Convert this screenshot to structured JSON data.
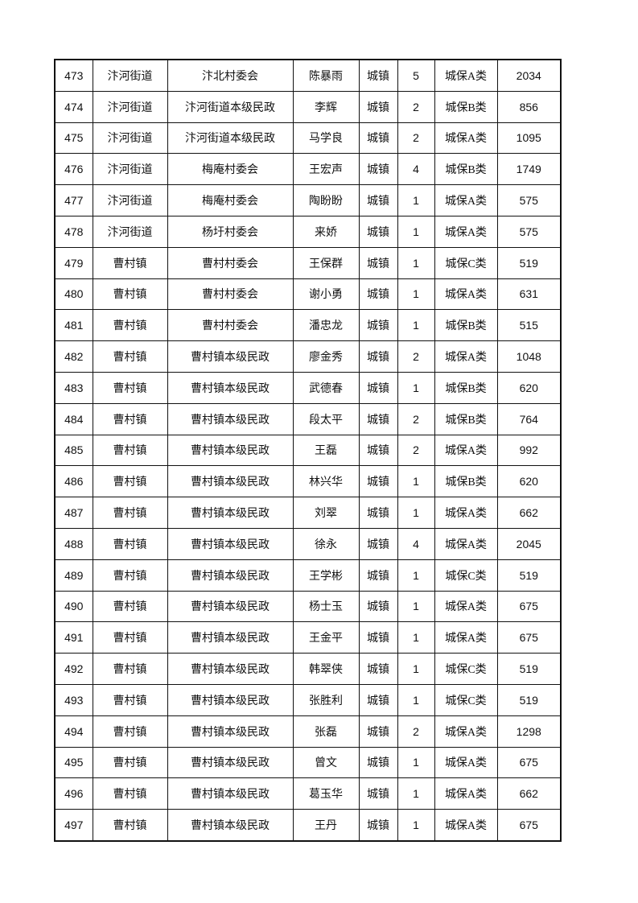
{
  "table": {
    "rows": [
      [
        "473",
        "汴河街道",
        "汴北村委会",
        "陈暴雨",
        "城镇",
        "5",
        "城保A类",
        "2034"
      ],
      [
        "474",
        "汴河街道",
        "汴河街道本级民政",
        "李辉",
        "城镇",
        "2",
        "城保B类",
        "856"
      ],
      [
        "475",
        "汴河街道",
        "汴河街道本级民政",
        "马学良",
        "城镇",
        "2",
        "城保A类",
        "1095"
      ],
      [
        "476",
        "汴河街道",
        "梅庵村委会",
        "王宏声",
        "城镇",
        "4",
        "城保B类",
        "1749"
      ],
      [
        "477",
        "汴河街道",
        "梅庵村委会",
        "陶盼盼",
        "城镇",
        "1",
        "城保A类",
        "575"
      ],
      [
        "478",
        "汴河街道",
        "杨圩村委会",
        "来娇",
        "城镇",
        "1",
        "城保A类",
        "575"
      ],
      [
        "479",
        "曹村镇",
        "曹村村委会",
        "王保群",
        "城镇",
        "1",
        "城保C类",
        "519"
      ],
      [
        "480",
        "曹村镇",
        "曹村村委会",
        "谢小勇",
        "城镇",
        "1",
        "城保A类",
        "631"
      ],
      [
        "481",
        "曹村镇",
        "曹村村委会",
        "潘忠龙",
        "城镇",
        "1",
        "城保B类",
        "515"
      ],
      [
        "482",
        "曹村镇",
        "曹村镇本级民政",
        "廖金秀",
        "城镇",
        "2",
        "城保A类",
        "1048"
      ],
      [
        "483",
        "曹村镇",
        "曹村镇本级民政",
        "武德春",
        "城镇",
        "1",
        "城保B类",
        "620"
      ],
      [
        "484",
        "曹村镇",
        "曹村镇本级民政",
        "段太平",
        "城镇",
        "2",
        "城保B类",
        "764"
      ],
      [
        "485",
        "曹村镇",
        "曹村镇本级民政",
        "王磊",
        "城镇",
        "2",
        "城保A类",
        "992"
      ],
      [
        "486",
        "曹村镇",
        "曹村镇本级民政",
        "林兴华",
        "城镇",
        "1",
        "城保B类",
        "620"
      ],
      [
        "487",
        "曹村镇",
        "曹村镇本级民政",
        "刘翠",
        "城镇",
        "1",
        "城保A类",
        "662"
      ],
      [
        "488",
        "曹村镇",
        "曹村镇本级民政",
        "徐永",
        "城镇",
        "4",
        "城保A类",
        "2045"
      ],
      [
        "489",
        "曹村镇",
        "曹村镇本级民政",
        "王学彬",
        "城镇",
        "1",
        "城保C类",
        "519"
      ],
      [
        "490",
        "曹村镇",
        "曹村镇本级民政",
        "杨士玉",
        "城镇",
        "1",
        "城保A类",
        "675"
      ],
      [
        "491",
        "曹村镇",
        "曹村镇本级民政",
        "王金平",
        "城镇",
        "1",
        "城保A类",
        "675"
      ],
      [
        "492",
        "曹村镇",
        "曹村镇本级民政",
        "韩翠侠",
        "城镇",
        "1",
        "城保C类",
        "519"
      ],
      [
        "493",
        "曹村镇",
        "曹村镇本级民政",
        "张胜利",
        "城镇",
        "1",
        "城保C类",
        "519"
      ],
      [
        "494",
        "曹村镇",
        "曹村镇本级民政",
        "张磊",
        "城镇",
        "2",
        "城保A类",
        "1298"
      ],
      [
        "495",
        "曹村镇",
        "曹村镇本级民政",
        "曾文",
        "城镇",
        "1",
        "城保A类",
        "675"
      ],
      [
        "496",
        "曹村镇",
        "曹村镇本级民政",
        "葛玉华",
        "城镇",
        "1",
        "城保A类",
        "662"
      ],
      [
        "497",
        "曹村镇",
        "曹村镇本级民政",
        "王丹",
        "城镇",
        "1",
        "城保A类",
        "675"
      ]
    ]
  }
}
